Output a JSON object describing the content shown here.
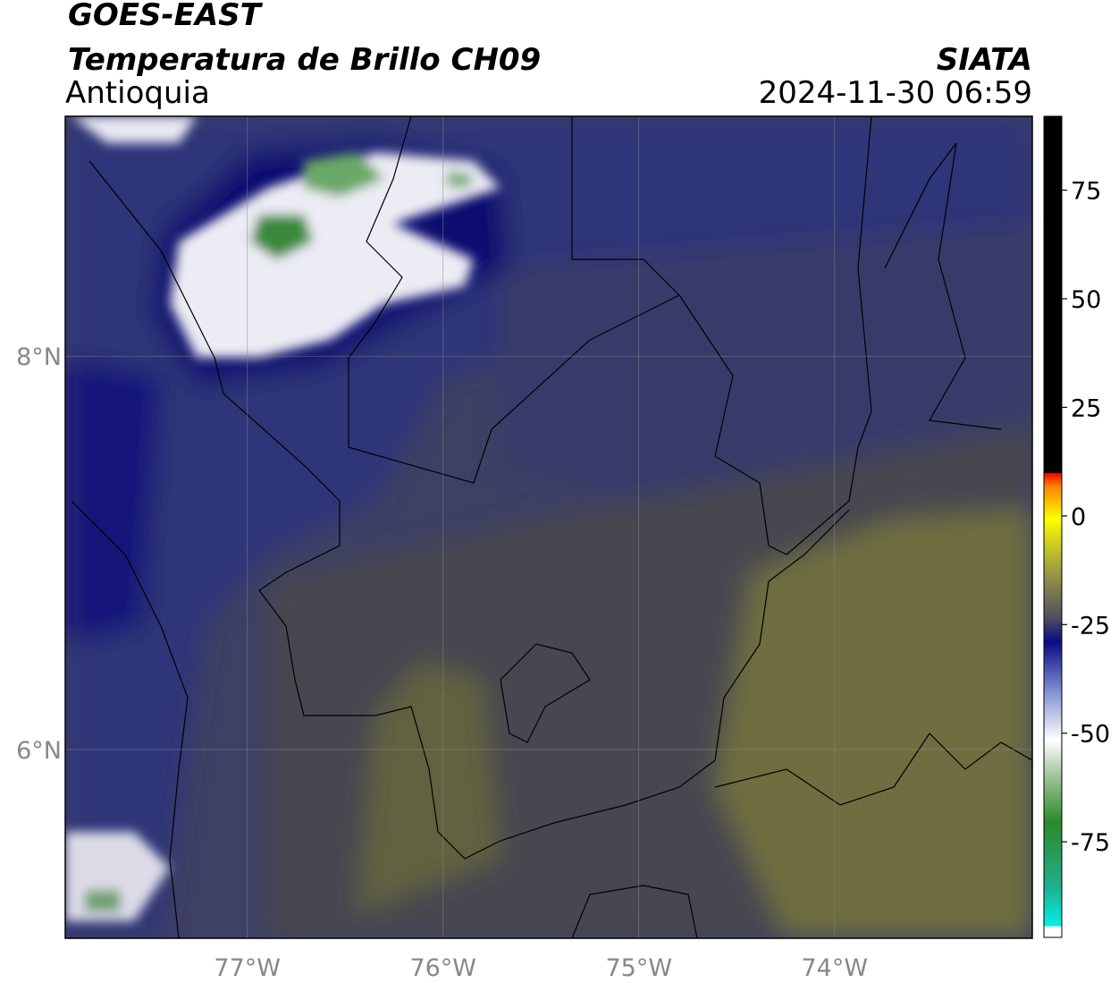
{
  "header": {
    "title": "GOES-EAST",
    "subtitle": "Temperatura de Brillo CH09",
    "region": "Antioquia",
    "source": "SIATA",
    "timestamp": "2024-11-30 06:59"
  },
  "map": {
    "lonlim": [
      -77.93,
      -72.99
    ],
    "latlim": [
      5.04,
      9.22
    ],
    "lonticks": [
      {
        "value": -77,
        "label": "77°W"
      },
      {
        "value": -76,
        "label": "76°W"
      },
      {
        "value": -75,
        "label": "75°W"
      },
      {
        "value": -74,
        "label": "74°W"
      }
    ],
    "latticks": [
      {
        "value": 8,
        "label": "8°N"
      },
      {
        "value": 6,
        "label": "6°N"
      }
    ],
    "grid": true
  },
  "colorbar": {
    "clim": [
      -97,
      92
    ],
    "ticks": [
      75,
      50,
      25,
      0,
      -25,
      -50,
      -75
    ]
  }
}
